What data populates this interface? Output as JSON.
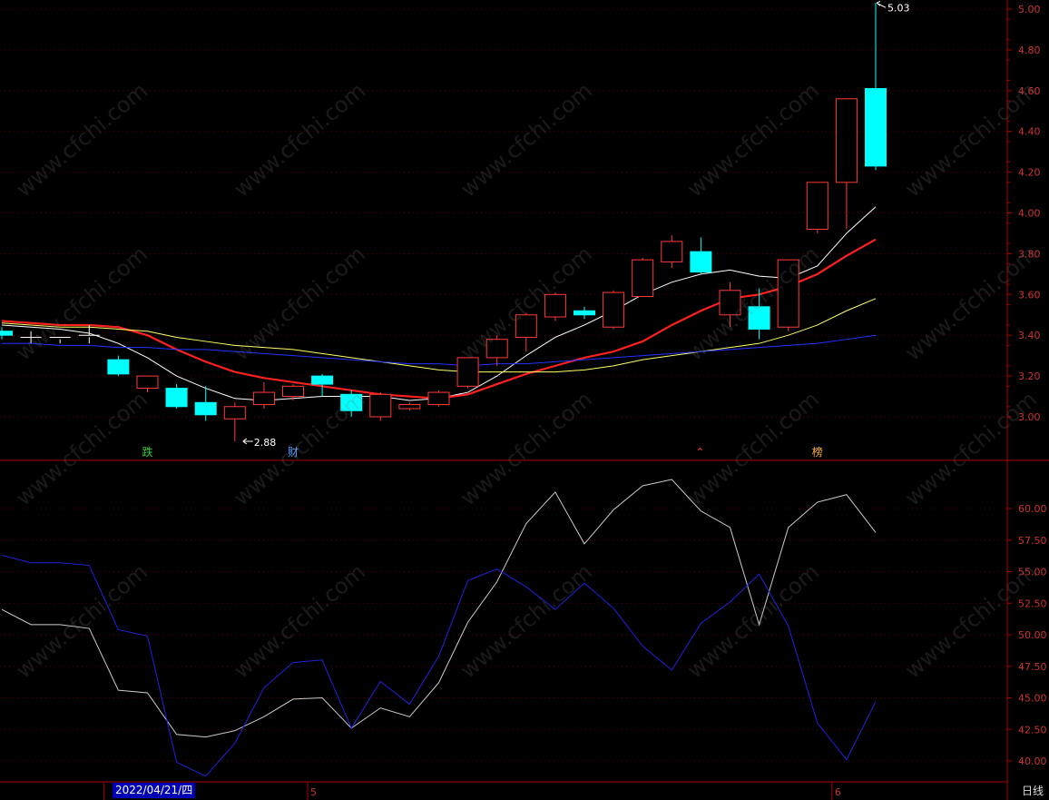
{
  "watermark": "www.cfchi.com",
  "period_label": "日线",
  "date_label": "2022/04/21/四",
  "month_labels": [
    "5",
    "6"
  ],
  "price_labels": {
    "high": "5.03",
    "low": "2.88"
  },
  "markers": [
    {
      "text": "跌",
      "color": "#33cc33",
      "day": 5
    },
    {
      "text": "财",
      "color": "#5599ff",
      "day": 10
    },
    {
      "text": "⌃",
      "color": "#ff4444",
      "day": 24
    },
    {
      "text": "榜",
      "color": "#ffaa44",
      "day": 28
    }
  ],
  "colors": {
    "up": "#ff3a3a",
    "down": "#00ffff",
    "ma_fast": "#ffffff",
    "ma_mid": "#ff2020",
    "ma_slow": "#ffff66",
    "ma_long": "#2233ff",
    "axis": "#aa0000",
    "tick_text": "#cc3333",
    "indicator_a": "#cccccc",
    "indicator_b": "#2222dd"
  },
  "chart_data": [
    {
      "type": "candlestick",
      "ylim": [
        2.8,
        5.05
      ],
      "yticks": [
        3.0,
        3.2,
        3.4,
        3.6,
        3.8,
        4.0,
        4.2,
        4.4,
        4.6,
        4.8,
        5.0
      ],
      "ytick_labels": [
        "3.00",
        "3.20",
        "3.40",
        "3.60",
        "3.80",
        "4.00",
        "4.20",
        "4.40",
        "4.60",
        "4.80",
        "5.00"
      ],
      "ohlc": [
        [
          3.42,
          3.44,
          3.38,
          3.4
        ],
        [
          3.39,
          3.42,
          3.36,
          3.39
        ],
        [
          3.38,
          3.39,
          3.36,
          3.39
        ],
        [
          3.39,
          3.45,
          3.36,
          3.4
        ],
        [
          3.28,
          3.3,
          3.2,
          3.21
        ],
        [
          3.14,
          3.2,
          3.12,
          3.2
        ],
        [
          3.14,
          3.16,
          3.04,
          3.05
        ],
        [
          3.07,
          3.15,
          2.98,
          3.01
        ],
        [
          2.99,
          3.07,
          2.88,
          3.05
        ],
        [
          3.06,
          3.17,
          3.04,
          3.12
        ],
        [
          3.1,
          3.16,
          3.08,
          3.15
        ],
        [
          3.2,
          3.21,
          3.1,
          3.16
        ],
        [
          3.11,
          3.13,
          3.0,
          3.03
        ],
        [
          3.0,
          3.12,
          2.98,
          3.11
        ],
        [
          3.04,
          3.07,
          3.03,
          3.06
        ],
        [
          3.06,
          3.13,
          3.05,
          3.12
        ],
        [
          3.15,
          3.29,
          3.14,
          3.29
        ],
        [
          3.29,
          3.4,
          3.25,
          3.38
        ],
        [
          3.39,
          3.51,
          3.32,
          3.5
        ],
        [
          3.49,
          3.61,
          3.47,
          3.6
        ],
        [
          3.52,
          3.54,
          3.48,
          3.5
        ],
        [
          3.44,
          3.62,
          3.43,
          3.61
        ],
        [
          3.59,
          3.78,
          3.59,
          3.77
        ],
        [
          3.76,
          3.89,
          3.73,
          3.86
        ],
        [
          3.81,
          3.88,
          3.7,
          3.71
        ],
        [
          3.5,
          3.66,
          3.44,
          3.62
        ],
        [
          3.54,
          3.63,
          3.38,
          3.43
        ],
        [
          3.44,
          3.77,
          3.42,
          3.77
        ],
        [
          3.92,
          4.15,
          3.9,
          4.15
        ],
        [
          4.15,
          4.56,
          3.92,
          4.56
        ],
        [
          4.61,
          5.03,
          4.21,
          4.23
        ]
      ],
      "ma": [
        {
          "color_key": "ma_fast",
          "values": [
            3.45,
            3.44,
            3.43,
            3.41,
            3.36,
            3.29,
            3.2,
            3.14,
            3.09,
            3.08,
            3.09,
            3.1,
            3.1,
            3.1,
            3.08,
            3.09,
            3.12,
            3.2,
            3.3,
            3.39,
            3.45,
            3.52,
            3.6,
            3.66,
            3.7,
            3.72,
            3.69,
            3.68,
            3.74,
            3.9,
            4.03
          ]
        },
        {
          "color_key": "ma_mid",
          "values": [
            3.47,
            3.46,
            3.45,
            3.45,
            3.44,
            3.4,
            3.33,
            3.27,
            3.22,
            3.19,
            3.17,
            3.15,
            3.13,
            3.11,
            3.1,
            3.09,
            3.11,
            3.16,
            3.21,
            3.25,
            3.29,
            3.32,
            3.37,
            3.45,
            3.52,
            3.58,
            3.6,
            3.64,
            3.7,
            3.79,
            3.87
          ]
        },
        {
          "color_key": "ma_slow",
          "values": [
            3.46,
            3.45,
            3.44,
            3.44,
            3.43,
            3.42,
            3.39,
            3.37,
            3.35,
            3.34,
            3.33,
            3.31,
            3.29,
            3.27,
            3.25,
            3.23,
            3.22,
            3.22,
            3.22,
            3.22,
            3.23,
            3.25,
            3.28,
            3.3,
            3.32,
            3.34,
            3.36,
            3.4,
            3.45,
            3.52,
            3.58
          ]
        },
        {
          "color_key": "ma_long",
          "values": [
            3.36,
            3.36,
            3.35,
            3.35,
            3.34,
            3.34,
            3.33,
            3.33,
            3.32,
            3.31,
            3.3,
            3.29,
            3.28,
            3.27,
            3.26,
            3.26,
            3.25,
            3.26,
            3.26,
            3.27,
            3.28,
            3.29,
            3.3,
            3.31,
            3.32,
            3.33,
            3.34,
            3.35,
            3.36,
            3.38,
            3.4
          ]
        }
      ]
    },
    {
      "type": "line",
      "ylim": [
        38.0,
        63.5
      ],
      "yticks": [
        40.0,
        42.5,
        45.0,
        47.5,
        50.0,
        52.5,
        55.0,
        57.5,
        60.0
      ],
      "ytick_labels": [
        "40.00",
        "42.50",
        "45.00",
        "47.50",
        "50.00",
        "52.50",
        "55.00",
        "57.50",
        "60.00"
      ],
      "series": [
        {
          "color_key": "indicator_a",
          "values": [
            52.0,
            50.8,
            50.8,
            50.5,
            45.6,
            45.4,
            42.1,
            41.9,
            42.4,
            43.5,
            44.9,
            45.0,
            42.6,
            44.2,
            43.5,
            46.2,
            51.0,
            54.2,
            58.8,
            61.3,
            57.2,
            59.9,
            61.8,
            62.3,
            59.8,
            58.5,
            50.8,
            58.5,
            60.5,
            61.1,
            58.1
          ]
        },
        {
          "color_key": "indicator_b",
          "values": [
            56.3,
            55.7,
            55.7,
            55.5,
            50.4,
            49.9,
            39.9,
            38.8,
            41.4,
            45.8,
            47.8,
            48.0,
            42.6,
            46.3,
            44.5,
            48.3,
            54.3,
            55.2,
            53.8,
            52.0,
            54.1,
            52.1,
            49.1,
            47.2,
            50.9,
            52.6,
            54.8,
            50.7,
            43.0,
            40.1,
            44.7
          ]
        }
      ]
    }
  ]
}
